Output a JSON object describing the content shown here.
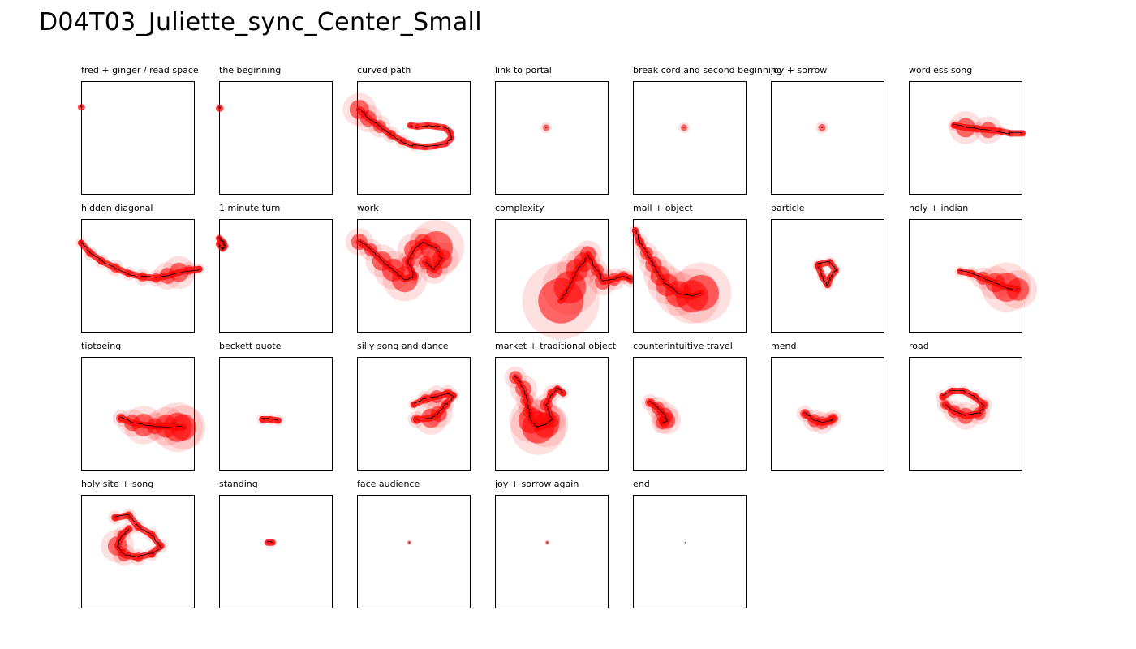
{
  "title": "D04T03_Juliette_sync_Center_Small",
  "colors": {
    "heat": "#ff0000",
    "path": "#000000",
    "frame": "#000000"
  },
  "chart_data": [
    {
      "type": "scatter",
      "title": "fred + ginger / read space",
      "series": [
        {
          "points": [
            [
              0.0,
              0.23
            ],
            [
              0.005,
              0.231
            ]
          ],
          "spread": [
            0.2,
            0.2
          ]
        }
      ]
    },
    {
      "type": "scatter",
      "title": "the beginning",
      "series": [
        {
          "points": [
            [
              0.0,
              0.24
            ],
            [
              0.006,
              0.236
            ],
            [
              0.01,
              0.24
            ]
          ],
          "spread": [
            0.4,
            0.4,
            0.4
          ]
        }
      ]
    },
    {
      "type": "scatter",
      "title": "curved path",
      "series": [
        {
          "points": [
            [
              0.02,
              0.25
            ],
            [
              0.1,
              0.33
            ],
            [
              0.2,
              0.4
            ],
            [
              0.3,
              0.47
            ],
            [
              0.4,
              0.53
            ],
            [
              0.5,
              0.57
            ],
            [
              0.6,
              0.58
            ],
            [
              0.7,
              0.57
            ],
            [
              0.78,
              0.55
            ],
            [
              0.83,
              0.5
            ],
            [
              0.82,
              0.45
            ],
            [
              0.77,
              0.41
            ],
            [
              0.7,
              0.4
            ],
            [
              0.62,
              0.39
            ],
            [
              0.53,
              0.4
            ],
            [
              0.47,
              0.39
            ]
          ],
          "spread": [
            12,
            10,
            8,
            6,
            5,
            4,
            3,
            3,
            3,
            3,
            3,
            3,
            3,
            3,
            3,
            3
          ]
        }
      ]
    },
    {
      "type": "scatter",
      "title": "link to portal",
      "series": [
        {
          "points": [
            [
              0.45,
              0.41
            ]
          ],
          "spread": [
            4
          ]
        }
      ]
    },
    {
      "type": "scatter",
      "title": "break cord and second beginning",
      "series": [
        {
          "points": [
            [
              0.45,
              0.41
            ]
          ],
          "spread": [
            4
          ]
        }
      ]
    },
    {
      "type": "scatter",
      "title": "joy + sorrow",
      "series": [
        {
          "points": [
            [
              0.45,
              0.41
            ]
          ],
          "spread": [
            4.5
          ]
        }
      ]
    },
    {
      "type": "scatter",
      "title": "wordless song",
      "series": [
        {
          "points": [
            [
              0.4,
              0.39
            ],
            [
              0.5,
              0.41
            ],
            [
              0.6,
              0.42
            ],
            [
              0.7,
              0.43
            ],
            [
              0.8,
              0.44
            ],
            [
              0.9,
              0.46
            ],
            [
              1.0,
              0.46
            ]
          ],
          "spread": [
            4,
            12,
            5,
            10,
            4,
            3,
            3
          ]
        }
      ]
    },
    {
      "type": "scatter",
      "title": "hidden diagonal",
      "series": [
        {
          "points": [
            [
              0.0,
              0.21
            ],
            [
              0.08,
              0.3
            ],
            [
              0.18,
              0.37
            ],
            [
              0.3,
              0.43
            ],
            [
              0.42,
              0.48
            ],
            [
              0.54,
              0.51
            ],
            [
              0.66,
              0.52
            ],
            [
              0.76,
              0.5
            ],
            [
              0.86,
              0.47
            ],
            [
              0.95,
              0.45
            ],
            [
              1.04,
              0.44
            ]
          ],
          "spread": [
            4,
            5,
            5,
            6,
            5,
            6,
            6,
            10,
            12,
            6,
            4
          ]
        }
      ]
    },
    {
      "type": "scatter",
      "title": "1 minute turn",
      "series": [
        {
          "points": [
            [
              0.0,
              0.17
            ],
            [
              0.02,
              0.19
            ],
            [
              0.04,
              0.21
            ],
            [
              0.05,
              0.24
            ],
            [
              0.03,
              0.26
            ],
            [
              0.0,
              0.22
            ]
          ],
          "spread": [
            3,
            3,
            3,
            3,
            3,
            3
          ]
        }
      ]
    },
    {
      "type": "scatter",
      "title": "work",
      "series": [
        {
          "points": [
            [
              0.02,
              0.2
            ],
            [
              0.12,
              0.27
            ],
            [
              0.22,
              0.37
            ],
            [
              0.32,
              0.45
            ],
            [
              0.42,
              0.53
            ],
            [
              0.5,
              0.5
            ],
            [
              0.45,
              0.38
            ],
            [
              0.5,
              0.27
            ],
            [
              0.58,
              0.2
            ],
            [
              0.7,
              0.25
            ],
            [
              0.75,
              0.35
            ],
            [
              0.68,
              0.45
            ],
            [
              0.6,
              0.38
            ]
          ],
          "spread": [
            10,
            8,
            12,
            14,
            16,
            6,
            8,
            12,
            10,
            20,
            12,
            10,
            8
          ]
        }
      ]
    },
    {
      "type": "scatter",
      "title": "complexity",
      "series": [
        {
          "points": [
            [
              0.58,
              0.72
            ],
            [
              0.66,
              0.6
            ],
            [
              0.72,
              0.45
            ],
            [
              0.78,
              0.38
            ],
            [
              0.82,
              0.31
            ],
            [
              0.9,
              0.45
            ],
            [
              0.95,
              0.55
            ],
            [
              1.05,
              0.53
            ],
            [
              1.13,
              0.5
            ],
            [
              1.2,
              0.53
            ]
          ],
          "spread": [
            28,
            20,
            14,
            12,
            10,
            8,
            10,
            8,
            6,
            6
          ]
        }
      ]
    },
    {
      "type": "scatter",
      "title": "mall + object",
      "series": [
        {
          "points": [
            [
              0.02,
              0.1
            ],
            [
              0.06,
              0.2
            ],
            [
              0.12,
              0.3
            ],
            [
              0.18,
              0.4
            ],
            [
              0.24,
              0.5
            ],
            [
              0.3,
              0.58
            ],
            [
              0.4,
              0.66
            ],
            [
              0.52,
              0.68
            ],
            [
              0.6,
              0.65
            ]
          ],
          "spread": [
            4,
            6,
            8,
            10,
            12,
            14,
            16,
            20,
            22
          ]
        }
      ]
    },
    {
      "type": "scatter",
      "title": "particle",
      "series": [
        {
          "points": [
            [
              0.42,
              0.4
            ],
            [
              0.52,
              0.38
            ],
            [
              0.57,
              0.45
            ],
            [
              0.52,
              0.52
            ],
            [
              0.5,
              0.58
            ],
            [
              0.45,
              0.5
            ],
            [
              0.42,
              0.42
            ]
          ],
          "spread": [
            4,
            4,
            4,
            4,
            4,
            4,
            4
          ]
        }
      ]
    },
    {
      "type": "scatter",
      "title": "holy + indian",
      "series": [
        {
          "points": [
            [
              0.45,
              0.46
            ],
            [
              0.55,
              0.48
            ],
            [
              0.65,
              0.52
            ],
            [
              0.76,
              0.56
            ],
            [
              0.86,
              0.6
            ],
            [
              0.96,
              0.62
            ]
          ],
          "spread": [
            4,
            5,
            8,
            12,
            18,
            14
          ]
        }
      ]
    },
    {
      "type": "scatter",
      "title": "tiptoeing",
      "series": [
        {
          "points": [
            [
              0.35,
              0.54
            ],
            [
              0.45,
              0.58
            ],
            [
              0.55,
              0.6
            ],
            [
              0.65,
              0.61
            ],
            [
              0.75,
              0.61
            ],
            [
              0.85,
              0.62
            ],
            [
              0.9,
              0.62
            ]
          ],
          "spread": [
            6,
            10,
            14,
            10,
            14,
            18,
            16
          ]
        }
      ]
    },
    {
      "type": "scatter",
      "title": "beckett quote",
      "series": [
        {
          "points": [
            [
              0.38,
              0.55
            ],
            [
              0.45,
              0.55
            ],
            [
              0.52,
              0.56
            ]
          ],
          "spread": [
            4,
            4,
            4
          ]
        }
      ]
    },
    {
      "type": "scatter",
      "title": "silly song and dance",
      "series": [
        {
          "points": [
            [
              0.5,
              0.42
            ],
            [
              0.6,
              0.37
            ],
            [
              0.7,
              0.35
            ],
            [
              0.8,
              0.32
            ],
            [
              0.85,
              0.34
            ],
            [
              0.78,
              0.42
            ],
            [
              0.72,
              0.5
            ],
            [
              0.65,
              0.54
            ],
            [
              0.52,
              0.55
            ]
          ],
          "spread": [
            4,
            6,
            8,
            6,
            4,
            6,
            10,
            12,
            6
          ]
        }
      ]
    },
    {
      "type": "scatter",
      "title": "market + traditional object",
      "series": [
        {
          "points": [
            [
              0.18,
              0.18
            ],
            [
              0.25,
              0.28
            ],
            [
              0.28,
              0.38
            ],
            [
              0.3,
              0.48
            ],
            [
              0.32,
              0.56
            ],
            [
              0.38,
              0.62
            ],
            [
              0.45,
              0.6
            ],
            [
              0.5,
              0.55
            ],
            [
              0.45,
              0.42
            ],
            [
              0.5,
              0.32
            ],
            [
              0.55,
              0.28
            ],
            [
              0.6,
              0.32
            ]
          ],
          "spread": [
            8,
            10,
            8,
            8,
            16,
            20,
            16,
            10,
            8,
            6,
            4,
            4
          ]
        }
      ]
    },
    {
      "type": "scatter",
      "title": "counterintuitive travel",
      "series": [
        {
          "points": [
            [
              0.15,
              0.4
            ],
            [
              0.22,
              0.45
            ],
            [
              0.28,
              0.52
            ],
            [
              0.3,
              0.56
            ],
            [
              0.26,
              0.58
            ]
          ],
          "spread": [
            6,
            8,
            10,
            10,
            8
          ]
        }
      ]
    },
    {
      "type": "scatter",
      "title": "mend",
      "series": [
        {
          "points": [
            [
              0.3,
              0.5
            ],
            [
              0.38,
              0.56
            ],
            [
              0.45,
              0.58
            ],
            [
              0.52,
              0.56
            ],
            [
              0.55,
              0.54
            ]
          ],
          "spread": [
            6,
            8,
            8,
            6,
            6
          ]
        }
      ]
    },
    {
      "type": "scatter",
      "title": "road",
      "series": [
        {
          "points": [
            [
              0.3,
              0.35
            ],
            [
              0.38,
              0.3
            ],
            [
              0.48,
              0.3
            ],
            [
              0.58,
              0.35
            ],
            [
              0.66,
              0.42
            ],
            [
              0.62,
              0.5
            ],
            [
              0.5,
              0.52
            ],
            [
              0.4,
              0.48
            ],
            [
              0.32,
              0.42
            ]
          ],
          "spread": [
            5,
            4,
            4,
            5,
            6,
            8,
            10,
            8,
            6
          ]
        }
      ]
    },
    {
      "type": "scatter",
      "title": "holy site + song",
      "series": [
        {
          "points": [
            [
              0.3,
              0.2
            ],
            [
              0.42,
              0.18
            ],
            [
              0.5,
              0.28
            ],
            [
              0.62,
              0.35
            ],
            [
              0.7,
              0.45
            ],
            [
              0.62,
              0.52
            ],
            [
              0.5,
              0.55
            ],
            [
              0.38,
              0.53
            ],
            [
              0.32,
              0.45
            ],
            [
              0.36,
              0.35
            ],
            [
              0.42,
              0.3
            ]
          ],
          "spread": [
            5,
            5,
            5,
            5,
            5,
            5,
            6,
            8,
            12,
            6,
            5
          ]
        }
      ]
    },
    {
      "type": "scatter",
      "title": "standing",
      "series": [
        {
          "points": [
            [
              0.43,
              0.42
            ],
            [
              0.47,
              0.42
            ]
          ],
          "spread": [
            3,
            3
          ]
        }
      ]
    },
    {
      "type": "scatter",
      "title": "face audience",
      "series": [
        {
          "points": [
            [
              0.46,
              0.42
            ]
          ],
          "spread": [
            2
          ]
        }
      ]
    },
    {
      "type": "scatter",
      "title": "joy + sorrow again",
      "series": [
        {
          "points": [
            [
              0.46,
              0.42
            ]
          ],
          "spread": [
            2
          ]
        }
      ]
    },
    {
      "type": "scatter",
      "title": "end",
      "series": [
        {
          "points": [
            [
              0.46,
              0.42
            ]
          ],
          "spread": [
            0.4
          ]
        }
      ]
    }
  ]
}
